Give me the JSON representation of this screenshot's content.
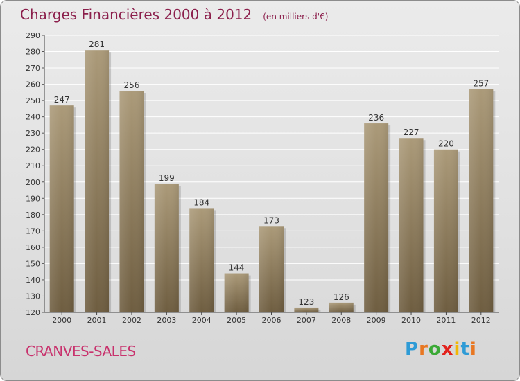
{
  "header": {
    "title": "Charges Financières 2000 à 2012",
    "subtitle": "(en milliers d'€)"
  },
  "footer": {
    "commune": "CRANVES-SALES",
    "logo_letters": [
      {
        "char": "P",
        "color": "#2e9bd6"
      },
      {
        "char": "r",
        "color": "#e87722"
      },
      {
        "char": "o",
        "color": "#3aa935"
      },
      {
        "char": "x",
        "color": "#e2211c"
      },
      {
        "char": "i",
        "color": "#f2b705"
      },
      {
        "char": "t",
        "color": "#2e9bd6"
      },
      {
        "char": "i",
        "color": "#e87722"
      }
    ]
  },
  "chart_data": {
    "type": "bar",
    "title": "Charges Financières 2000 à 2012",
    "subtitle": "(en milliers d'€)",
    "xlabel": "",
    "ylabel": "",
    "categories": [
      "2000",
      "2001",
      "2002",
      "2003",
      "2004",
      "2005",
      "2006",
      "2007",
      "2008",
      "2009",
      "2010",
      "2011",
      "2012"
    ],
    "values": [
      247,
      281,
      256,
      199,
      184,
      144,
      173,
      123,
      126,
      236,
      227,
      220,
      257
    ],
    "ylim": [
      120,
      290
    ],
    "yticks": [
      120,
      130,
      140,
      150,
      160,
      170,
      180,
      190,
      200,
      210,
      220,
      230,
      240,
      250,
      260,
      270,
      280,
      290
    ],
    "grid": "horizontal",
    "bar_color_top": "#ab9a79",
    "bar_color_bottom": "#6e5d40"
  }
}
